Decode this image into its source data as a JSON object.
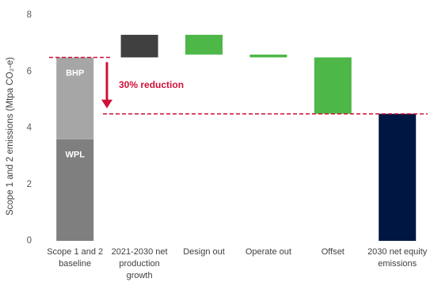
{
  "chart_data": {
    "type": "waterfall",
    "y_label": "Scope 1 and 2 emissions (Mtpa CO₂-e)",
    "categories": [
      "Scope 1 and 2 baseline",
      "2021-2030 net production growth",
      "Design out",
      "Operate out",
      "Offset",
      "2030 net equity emissions"
    ],
    "baseline": [
      {
        "name": "WPL",
        "value": 3.6,
        "color": "#7f7f7f"
      },
      {
        "name": "BHP",
        "value": 2.9,
        "color": "#a6a6a6"
      }
    ],
    "changes": {
      "values": [
        0.8,
        -0.7,
        -0.1,
        -2.0
      ],
      "colors": [
        "#404040",
        "#4db748",
        "#4db748",
        "#4db748"
      ]
    },
    "total": {
      "value": 4.5,
      "color": "#001642"
    },
    "reference_lines": [
      6.5,
      4.5
    ],
    "reference_color": "#d0103a",
    "annotation": "30% reduction",
    "ylim": [
      0,
      8
    ],
    "yticks": [
      0,
      2,
      4,
      6,
      8
    ],
    "grid": false
  }
}
